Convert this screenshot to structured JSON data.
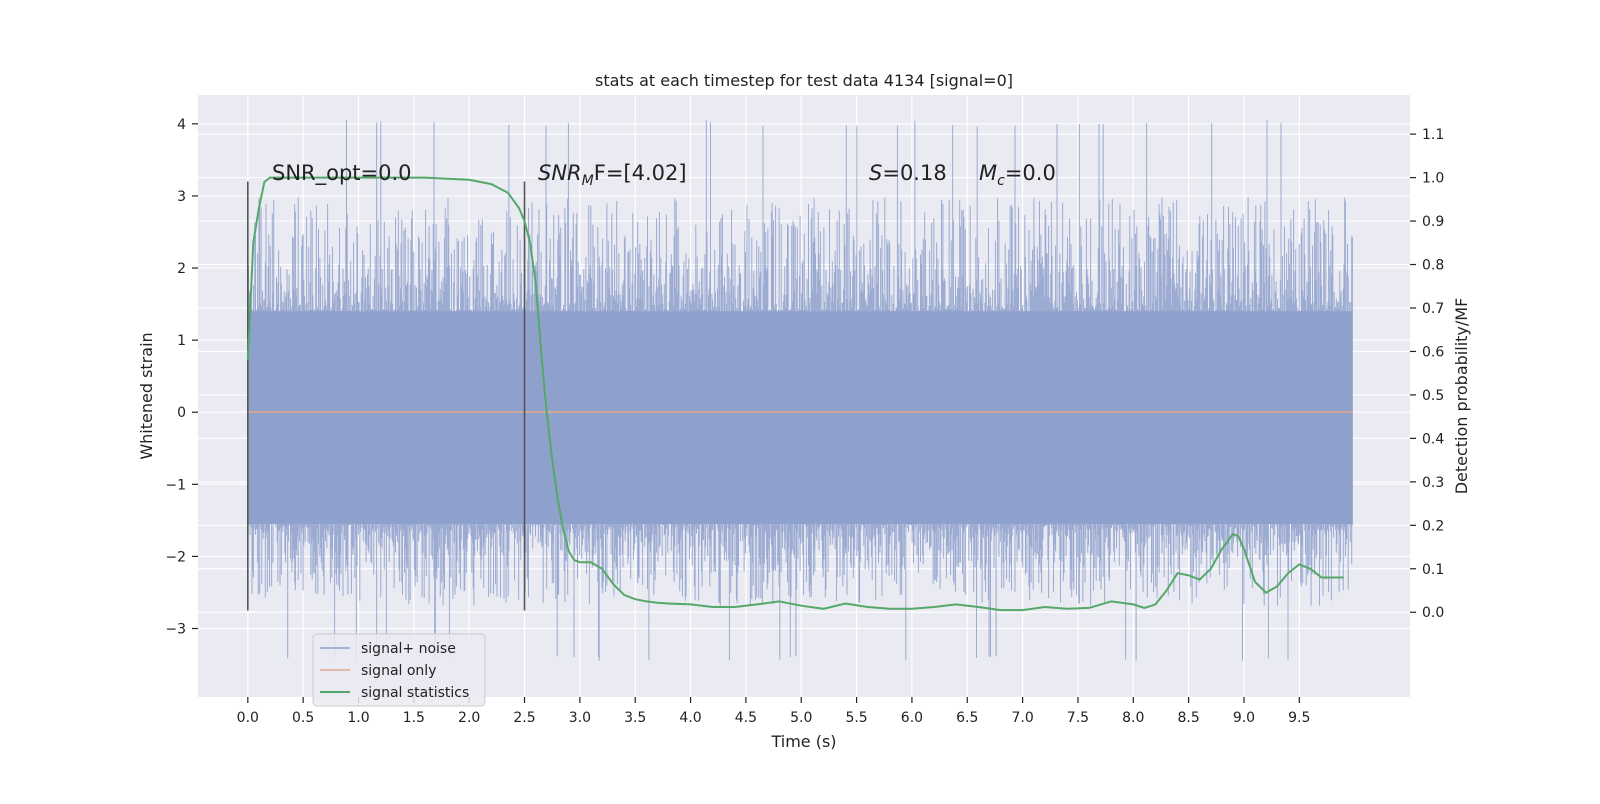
{
  "chart_data": {
    "type": "line",
    "title": "stats at each timestep for test data 4134 [signal=0]",
    "xlabel": "Time (s)",
    "ylabel": "Whitened strain",
    "y2label": "Detection probability/MF",
    "xlim": [
      -0.45,
      10.5
    ],
    "ylim": [
      -3.95,
      4.4
    ],
    "y2lim": [
      -0.195,
      1.19
    ],
    "xticks": [
      "0.0",
      "0.5",
      "1.0",
      "1.5",
      "2.0",
      "2.5",
      "3.0",
      "3.5",
      "4.0",
      "4.5",
      "5.0",
      "5.5",
      "6.0",
      "6.5",
      "7.0",
      "7.5",
      "8.0",
      "8.5",
      "9.0",
      "9.5"
    ],
    "yticks": [
      "−3",
      "−2",
      "−1",
      "0",
      "1",
      "2",
      "3",
      "4"
    ],
    "y2ticks": [
      "0.0",
      "0.1",
      "0.2",
      "0.3",
      "0.4",
      "0.5",
      "0.6",
      "0.7",
      "0.8",
      "0.9",
      "1.0",
      "1.1"
    ],
    "grid": true,
    "legend": {
      "placement": "lower-left",
      "entries": [
        "signal+ noise",
        "signal only",
        "signal statistics"
      ]
    },
    "annotations": {
      "snr_opt_label": "SNR_opt=0.0",
      "snr_mf_prefix": "SNR",
      "snr_mf_sub": "M",
      "snr_mf_suffix": "F=[4.02]",
      "s_prefix": "S",
      "s_value": "=0.18",
      "mc_prefix": "M",
      "mc_sub": "c",
      "mc_value": "=0.0"
    },
    "vlines": [
      {
        "x": 0.0,
        "ymin": -2.75,
        "ymax": 3.2
      },
      {
        "x": 2.5,
        "ymin": -2.75,
        "ymax": 3.2
      }
    ],
    "noise": {
      "x_start": 0.0,
      "x_end": 9.98,
      "band_upper": 1.4,
      "band_lower": -1.55,
      "peak_max": 4.05,
      "peak_min": -3.45
    },
    "signal_only": {
      "x": [
        0.0,
        9.98
      ],
      "y": [
        0.0,
        0.0
      ]
    },
    "series": [
      {
        "name": "signal statistics",
        "axis": "right",
        "x": [
          0.0,
          0.05,
          0.1,
          0.15,
          0.2,
          0.4,
          0.8,
          1.2,
          1.6,
          2.0,
          2.2,
          2.35,
          2.45,
          2.5,
          2.55,
          2.6,
          2.65,
          2.7,
          2.75,
          2.8,
          2.85,
          2.9,
          2.95,
          3.0,
          3.1,
          3.2,
          3.3,
          3.4,
          3.5,
          3.6,
          3.7,
          3.8,
          4.0,
          4.2,
          4.4,
          4.6,
          4.8,
          5.0,
          5.2,
          5.4,
          5.6,
          5.8,
          6.0,
          6.2,
          6.4,
          6.6,
          6.8,
          7.0,
          7.2,
          7.4,
          7.6,
          7.8,
          8.0,
          8.1,
          8.2,
          8.3,
          8.4,
          8.5,
          8.6,
          8.7,
          8.8,
          8.9,
          8.95,
          9.0,
          9.1,
          9.2,
          9.3,
          9.4,
          9.5,
          9.6,
          9.7,
          9.8,
          9.9
        ],
        "y": [
          0.58,
          0.85,
          0.93,
          0.99,
          1.0,
          1.0,
          1.0,
          1.0,
          1.0,
          0.995,
          0.985,
          0.965,
          0.93,
          0.9,
          0.85,
          0.76,
          0.6,
          0.46,
          0.35,
          0.26,
          0.19,
          0.14,
          0.12,
          0.115,
          0.115,
          0.1,
          0.065,
          0.04,
          0.03,
          0.025,
          0.022,
          0.02,
          0.018,
          0.012,
          0.012,
          0.018,
          0.025,
          0.015,
          0.008,
          0.02,
          0.012,
          0.008,
          0.008,
          0.012,
          0.018,
          0.012,
          0.005,
          0.005,
          0.012,
          0.008,
          0.01,
          0.025,
          0.018,
          0.01,
          0.018,
          0.05,
          0.09,
          0.085,
          0.075,
          0.1,
          0.145,
          0.18,
          0.175,
          0.145,
          0.07,
          0.045,
          0.06,
          0.09,
          0.11,
          0.1,
          0.08,
          0.08,
          0.08
        ]
      }
    ],
    "colors": {
      "plot_bg": "#eaeaf2",
      "grid": "#ffffff",
      "noise": "#8da0cb",
      "signal_only": "#e1a890",
      "statistics": "#55a868",
      "vline": "#555555",
      "text": "#222222"
    }
  }
}
